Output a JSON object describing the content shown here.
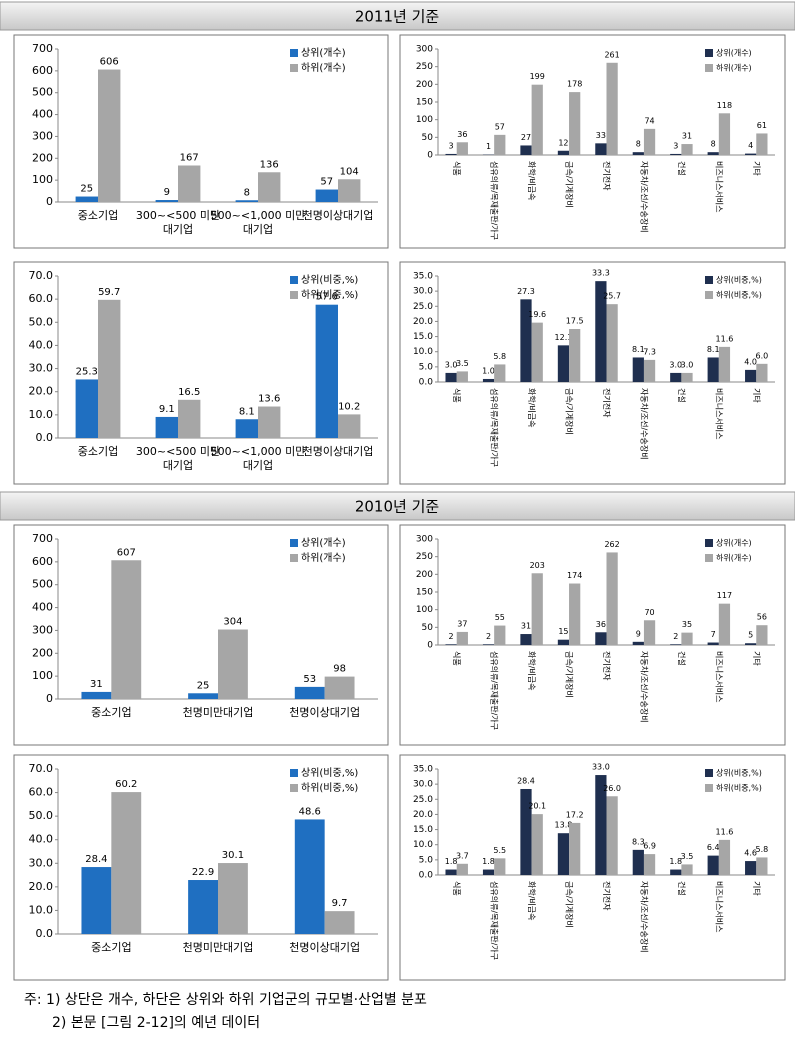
{
  "sections": [
    "2011년 기준",
    "2010년 기준"
  ],
  "notes": [
    "주: 1) 상단은 개수, 하단은 상위와 하위 기업군의 규모별·산업별 분포",
    "2) 본문 [그림 2-12]의 예년 데이터"
  ],
  "chart_data": [
    {
      "type": "bar",
      "categories": [
        "중소기업",
        "300~<500 미만\n대기업",
        "500~<1,000 미만\n대기업",
        "천명이상대기업"
      ],
      "series": [
        {
          "name": "상위(개수)",
          "color": "#1f6fc1",
          "values": [
            25,
            9,
            8,
            57
          ]
        },
        {
          "name": "하위(개수)",
          "color": "#a6a6a6",
          "values": [
            606,
            167,
            136,
            104
          ]
        }
      ],
      "ylim": [
        0,
        700
      ],
      "yticks": [
        0,
        100,
        200,
        300,
        400,
        500,
        600,
        700
      ],
      "grid": false,
      "legend": "upper right"
    },
    {
      "type": "bar",
      "categories": [
        "식품",
        "섬유의류/목재출판/가구",
        "화학/비금속",
        "금속/기계장비",
        "전기전자",
        "자동차/조선/수송장비",
        "건설",
        "비즈니스서비스",
        "기타"
      ],
      "series": [
        {
          "name": "상위(개수)",
          "color": "#1f2f4f",
          "values": [
            3,
            1,
            27,
            12,
            33,
            8,
            3,
            8,
            4
          ]
        },
        {
          "name": "하위(개수)",
          "color": "#a6a6a6",
          "values": [
            36,
            57,
            199,
            178,
            261,
            74,
            31,
            118,
            61
          ]
        }
      ],
      "ylim": [
        0,
        300
      ],
      "yticks": [
        0,
        50,
        100,
        150,
        200,
        250,
        300
      ],
      "grid": false,
      "legend": "upper right"
    },
    {
      "type": "bar",
      "categories": [
        "중소기업",
        "300~<500 미만\n대기업",
        "500~<1,000 미만\n대기업",
        "천명이상대기업"
      ],
      "series": [
        {
          "name": "상위(비중,%)",
          "color": "#1f6fc1",
          "values": [
            25.3,
            9.1,
            8.1,
            57.6
          ]
        },
        {
          "name": "하위(비중,%)",
          "color": "#a6a6a6",
          "values": [
            59.7,
            16.5,
            13.6,
            10.2
          ]
        }
      ],
      "ylim": [
        0,
        70
      ],
      "yticks": [
        {
          "value": 0,
          "label": "0.0"
        },
        {
          "value": 10,
          "label": "10.0"
        },
        {
          "value": 20,
          "label": "20.0"
        },
        {
          "value": 30,
          "label": "30.0"
        },
        {
          "value": 40,
          "label": "40.0"
        },
        {
          "value": 50,
          "label": "50.0"
        },
        {
          "value": 60,
          "label": "60.0"
        },
        {
          "value": 70,
          "label": "70.0"
        }
      ],
      "grid": false,
      "legend": "upper right"
    },
    {
      "type": "bar",
      "categories": [
        "식품",
        "섬유의류/목재출판/가구",
        "화학/비금속",
        "금속/기계장비",
        "전기전자",
        "자동차/조선/수송장비",
        "건설",
        "비즈니스서비스",
        "기타"
      ],
      "series": [
        {
          "name": "상위(비중,%)",
          "color": "#1f2f4f",
          "values": [
            3.0,
            1.0,
            27.3,
            12.1,
            33.3,
            8.1,
            3.0,
            8.1,
            4.0
          ],
          "value_labels": [
            "3.0",
            "1.0",
            "27.3",
            "12.1",
            "33.3",
            "8.1",
            "3.0",
            "8.1",
            "4.0"
          ]
        },
        {
          "name": "하위(비중,%)",
          "color": "#a6a6a6",
          "values": [
            3.5,
            5.8,
            19.6,
            17.5,
            25.7,
            7.3,
            3.0,
            11.6,
            6.0
          ],
          "value_labels": [
            "3.5",
            "5.8",
            "19.6",
            "17.5",
            "25.7",
            "7.3",
            "3.0",
            "11.6",
            "6.0"
          ]
        }
      ],
      "ylim": [
        0,
        35
      ],
      "yticks": [
        {
          "value": 0,
          "label": "0.0"
        },
        {
          "value": 5,
          "label": "5.0"
        },
        {
          "value": 10,
          "label": "10.0"
        },
        {
          "value": 15,
          "label": "15.0"
        },
        {
          "value": 20,
          "label": "20.0"
        },
        {
          "value": 25,
          "label": "25.0"
        },
        {
          "value": 30,
          "label": "30.0"
        },
        {
          "value": 35,
          "label": "35.0"
        }
      ],
      "grid": false,
      "legend": "upper right"
    },
    {
      "type": "bar",
      "categories": [
        "중소기업",
        "천명미만대기업",
        "천명이상대기업"
      ],
      "series": [
        {
          "name": "상위(개수)",
          "color": "#1f6fc1",
          "values": [
            31,
            25,
            53
          ]
        },
        {
          "name": "하위(개수)",
          "color": "#a6a6a6",
          "values": [
            607,
            304,
            98
          ]
        }
      ],
      "ylim": [
        0,
        700
      ],
      "yticks": [
        0,
        100,
        200,
        300,
        400,
        500,
        600,
        700
      ],
      "grid": false,
      "legend": "upper right"
    },
    {
      "type": "bar",
      "categories": [
        "식품",
        "섬유의류/목재출판/가구",
        "화학/비금속",
        "금속/기계장비",
        "전기전자",
        "자동차/조선/수송장비",
        "건설",
        "비즈니스서비스",
        "기타"
      ],
      "series": [
        {
          "name": "상위(개수)",
          "color": "#1f2f4f",
          "values": [
            2,
            2,
            31,
            15,
            36,
            9,
            2,
            7,
            5
          ]
        },
        {
          "name": "하위(개수)",
          "color": "#a6a6a6",
          "values": [
            37,
            55,
            203,
            174,
            262,
            70,
            35,
            117,
            56
          ]
        }
      ],
      "ylim": [
        0,
        300
      ],
      "yticks": [
        0,
        50,
        100,
        150,
        200,
        250,
        300
      ],
      "grid": false,
      "legend": "upper right"
    },
    {
      "type": "bar",
      "categories": [
        "중소기업",
        "천명미만대기업",
        "천명이상대기업"
      ],
      "series": [
        {
          "name": "상위(비중,%)",
          "color": "#1f6fc1",
          "values": [
            28.4,
            22.9,
            48.6
          ]
        },
        {
          "name": "하위(비중,%)",
          "color": "#a6a6a6",
          "values": [
            60.2,
            30.1,
            9.7
          ]
        }
      ],
      "ylim": [
        0,
        70
      ],
      "yticks": [
        {
          "value": 0,
          "label": "0.0"
        },
        {
          "value": 10,
          "label": "10.0"
        },
        {
          "value": 20,
          "label": "20.0"
        },
        {
          "value": 30,
          "label": "30.0"
        },
        {
          "value": 40,
          "label": "40.0"
        },
        {
          "value": 50,
          "label": "50.0"
        },
        {
          "value": 60,
          "label": "60.0"
        },
        {
          "value": 70,
          "label": "70.0"
        }
      ],
      "grid": false,
      "legend": "upper right"
    },
    {
      "type": "bar",
      "categories": [
        "식품",
        "섬유의류/목재출판/가구",
        "화학/비금속",
        "금속/기계장비",
        "전기전자",
        "자동차/조선/수송장비",
        "건설",
        "비즈니스서비스",
        "기타"
      ],
      "series": [
        {
          "name": "상위(비중,%)",
          "color": "#1f2f4f",
          "values": [
            1.8,
            1.8,
            28.4,
            13.8,
            33.0,
            8.3,
            1.8,
            6.4,
            4.6
          ],
          "value_labels": [
            "1.8",
            "1.8",
            "28.4",
            "13.8",
            "33.0",
            "8.3",
            "1.8",
            "6.4",
            "4.6"
          ]
        },
        {
          "name": "하위(비중,%)",
          "color": "#a6a6a6",
          "values": [
            3.7,
            5.5,
            20.1,
            17.2,
            26.0,
            6.9,
            3.5,
            11.6,
            5.8
          ],
          "value_labels": [
            "3.7",
            "5.5",
            "20.1",
            "17.2",
            "26.0",
            "6.9",
            "3.5",
            "11.6",
            "5.8"
          ]
        }
      ],
      "ylim": [
        0,
        35
      ],
      "yticks": [
        {
          "value": 0,
          "label": "0.0"
        },
        {
          "value": 5,
          "label": "5.0"
        },
        {
          "value": 10,
          "label": "10.0"
        },
        {
          "value": 15,
          "label": "15.0"
        },
        {
          "value": 20,
          "label": "20.0"
        },
        {
          "value": 25,
          "label": "25.0"
        },
        {
          "value": 30,
          "label": "30.0"
        },
        {
          "value": 35,
          "label": "35.0"
        }
      ],
      "grid": false,
      "legend": "upper right"
    }
  ]
}
